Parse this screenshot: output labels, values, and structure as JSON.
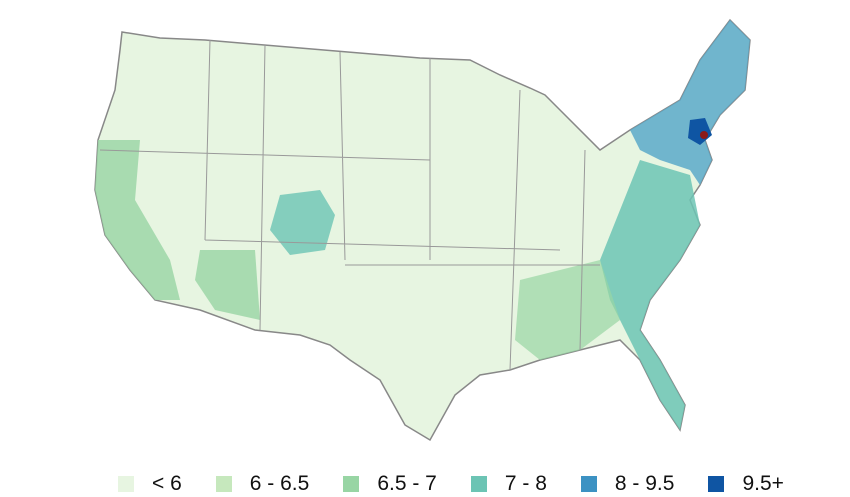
{
  "legend": {
    "items": [
      {
        "label": "< 6",
        "color": "#e7f5e1"
      },
      {
        "label": "6 - 6.5",
        "color": "#c6e8bd"
      },
      {
        "label": "6.5 - 7",
        "color": "#98d5a4"
      },
      {
        "label": "7 - 8",
        "color": "#6cc4b4"
      },
      {
        "label": "8 - 9.5",
        "color": "#3c92c3"
      },
      {
        "label": "9.5+",
        "color": "#0f55a3"
      }
    ]
  }
}
